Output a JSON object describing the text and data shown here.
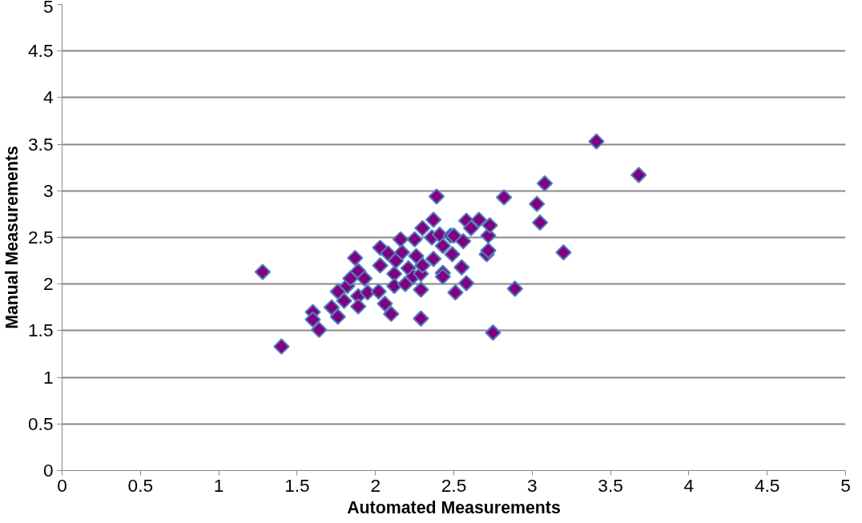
{
  "chart_data": {
    "type": "scatter",
    "xlabel": "Automated Measurements",
    "ylabel": "Manual Measurements",
    "xlim": [
      0,
      5
    ],
    "ylim": [
      0,
      5
    ],
    "xticks": [
      0,
      0.5,
      1,
      1.5,
      2,
      2.5,
      3,
      3.5,
      4,
      4.5,
      5
    ],
    "yticks": [
      0,
      0.5,
      1,
      1.5,
      2,
      2.5,
      3,
      3.5,
      4,
      4.5,
      5
    ],
    "grid": "y",
    "marker": "diamond",
    "series": [
      {
        "color": "#800080",
        "x": [
          1.28,
          1.4,
          1.6,
          1.6,
          1.64,
          1.72,
          1.76,
          1.76,
          1.8,
          1.82,
          1.84,
          1.87,
          1.89,
          1.89,
          1.89,
          1.93,
          1.95,
          2.02,
          2.03,
          2.03,
          2.06,
          2.08,
          2.1,
          2.12,
          2.12,
          2.13,
          2.16,
          2.17,
          2.19,
          2.21,
          2.24,
          2.25,
          2.26,
          2.29,
          2.29,
          2.29,
          2.3,
          2.3,
          2.36,
          2.37,
          2.37,
          2.39,
          2.41,
          2.43,
          2.43,
          2.43,
          2.48,
          2.49,
          2.5,
          2.51,
          2.55,
          2.56,
          2.58,
          2.58,
          2.61,
          2.66,
          2.71,
          2.72,
          2.72,
          2.73,
          2.75,
          2.82,
          2.89,
          3.03,
          3.05,
          3.08,
          3.2,
          3.41,
          3.68
        ],
        "values": [
          2.13,
          1.33,
          1.7,
          1.62,
          1.51,
          1.75,
          1.92,
          1.65,
          1.82,
          1.98,
          2.06,
          2.28,
          2.14,
          1.87,
          1.76,
          2.06,
          1.91,
          1.92,
          2.39,
          2.2,
          1.79,
          2.33,
          1.68,
          2.11,
          1.98,
          2.25,
          2.48,
          2.34,
          2.0,
          2.17,
          2.08,
          2.48,
          2.3,
          2.11,
          1.94,
          1.63,
          2.6,
          2.2,
          2.5,
          2.69,
          2.27,
          2.94,
          2.53,
          2.41,
          2.12,
          2.08,
          2.52,
          2.32,
          2.52,
          1.91,
          2.18,
          2.46,
          2.68,
          2.01,
          2.6,
          2.69,
          2.32,
          2.52,
          2.36,
          2.63,
          1.48,
          2.93,
          1.95,
          2.86,
          2.66,
          3.08,
          2.34,
          3.53,
          3.17
        ]
      }
    ]
  }
}
